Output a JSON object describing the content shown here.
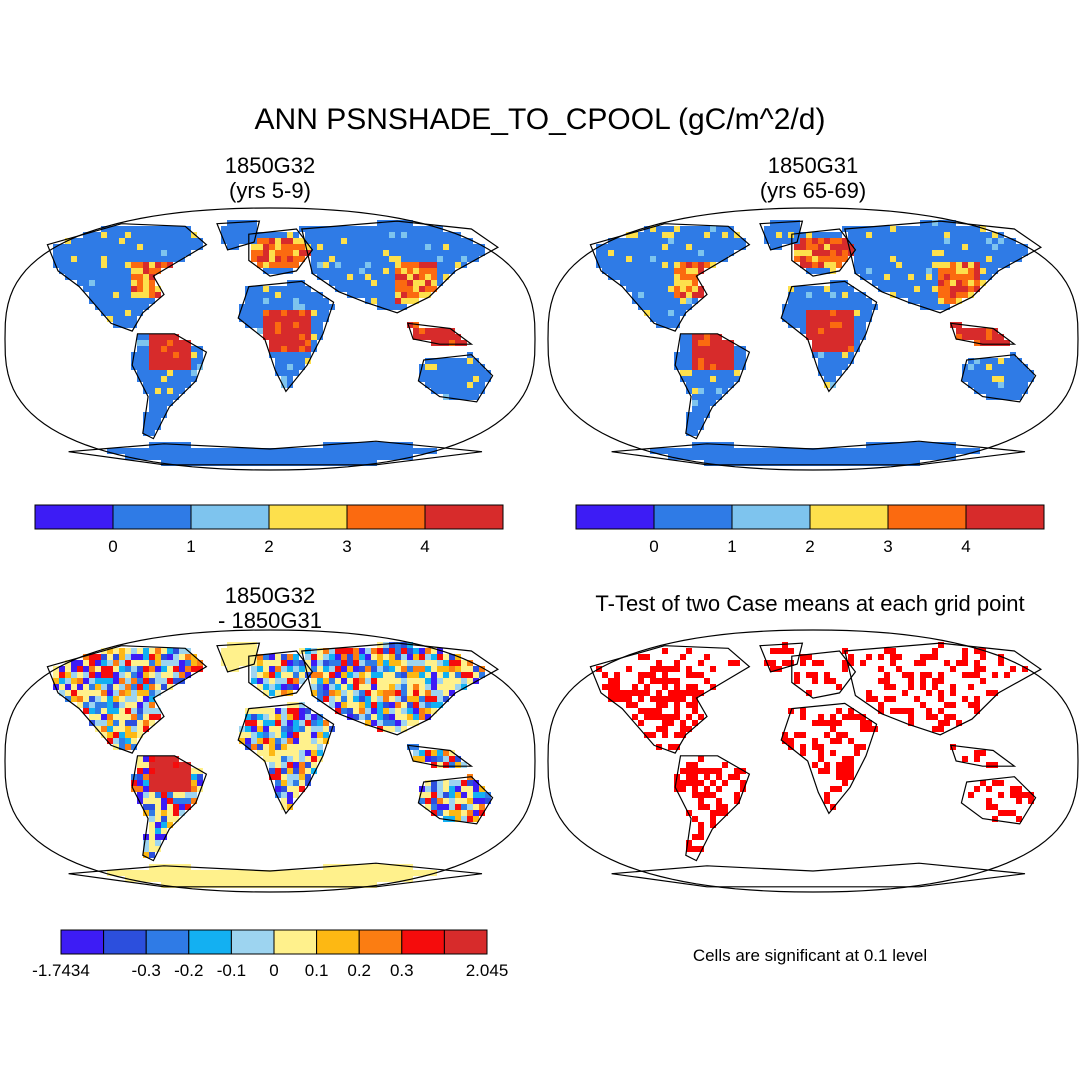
{
  "title": "ANN PSNSHADE_TO_CPOOL (gC/m^2/d)",
  "panels": [
    {
      "id": "case1",
      "title_line1": "1850G32",
      "title_line2": "(yrs 5-9)",
      "colorbar": {
        "colors": [
          "#3d1cf5",
          "#2f7be6",
          "#7ec4ee",
          "#fde04c",
          "#fb6a10",
          "#d72b2b"
        ],
        "ticks": [
          "0",
          "1",
          "2",
          "3",
          "4"
        ]
      },
      "fill_levels": {
        "land_base": "#2f7be6",
        "tropics_high": "#d72b2b",
        "midlat_high": "#fb6a10",
        "fringe": "#fde04c"
      }
    },
    {
      "id": "case2",
      "title_line1": "1850G31",
      "title_line2": "(yrs 65-69)",
      "colorbar": {
        "colors": [
          "#3d1cf5",
          "#2f7be6",
          "#7ec4ee",
          "#fde04c",
          "#fb6a10",
          "#d72b2b"
        ],
        "ticks": [
          "0",
          "1",
          "2",
          "3",
          "4"
        ]
      },
      "fill_levels": {
        "land_base": "#2f7be6",
        "tropics_high": "#d72b2b",
        "midlat_high": "#fb6a10",
        "fringe": "#fde04c"
      }
    },
    {
      "id": "diff",
      "title_line1": "1850G32",
      "title_line2": "- 1850G31",
      "colorbar": {
        "colors": [
          "#3d1cf5",
          "#2c4fdd",
          "#2f7be6",
          "#13b0f2",
          "#9dd4f0",
          "#fff18c",
          "#fdb813",
          "#fb7d12",
          "#f50c0c",
          "#d72b2b"
        ],
        "ticks": [
          "-1.7434",
          "-0.3",
          "-0.2",
          "-0.1",
          "0",
          "0.1",
          "0.2",
          "0.3",
          "2.045"
        ]
      }
    },
    {
      "id": "ttest",
      "title_line1": "T-Test of two Case means at each grid point",
      "note": "Cells are significant at 0.1 level",
      "dot_color": "#ff0000"
    }
  ]
}
